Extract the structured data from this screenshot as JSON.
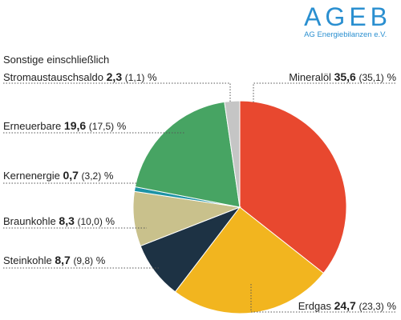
{
  "logo": {
    "title": "AGEB",
    "subtitle": "AG Energiebilanzen e.V."
  },
  "colors": {
    "Mineralöl": "#e8482f",
    "Erdgas": "#f2b51f",
    "Steinkohle": "#1d3244",
    "Braunkohle": "#c9c18c",
    "Kernenergie": "#1e93a5",
    "Erneuerbare": "#47a463",
    "Sonstige": "#c5c5c5",
    "logo": "#2a8fd0"
  },
  "chart_data": {
    "type": "pie",
    "unit": "%",
    "slices": [
      {
        "name": "Mineralöl",
        "value": 35.6,
        "previous": "35,1",
        "label_line1": "",
        "label_name": "Mineralöl",
        "value_text": "35,6",
        "prev_text": "(35,1)"
      },
      {
        "name": "Erdgas",
        "value": 24.7,
        "previous": "23,3",
        "label_line1": "",
        "label_name": "Erdgas",
        "value_text": "24,7",
        "prev_text": "(23,3)"
      },
      {
        "name": "Steinkohle",
        "value": 8.7,
        "previous": "9,8",
        "label_line1": "",
        "label_name": "Steinkohle",
        "value_text": "8,7",
        "prev_text": "(9,8)"
      },
      {
        "name": "Braunkohle",
        "value": 8.3,
        "previous": "10,0",
        "label_line1": "",
        "label_name": "Braunkohle",
        "value_text": "8,3",
        "prev_text": "(10,0)"
      },
      {
        "name": "Kernenergie",
        "value": 0.7,
        "previous": "3,2",
        "label_line1": "",
        "label_name": "Kernenergie",
        "value_text": "0,7",
        "prev_text": "(3,2)"
      },
      {
        "name": "Erneuerbare",
        "value": 19.6,
        "previous": "17,5",
        "label_line1": "",
        "label_name": "Erneuerbare",
        "value_text": "19,6",
        "prev_text": "(17,5)"
      },
      {
        "name": "Sonstige einschließlich Stromaustauschsaldo",
        "value": 2.3,
        "previous": "1,1",
        "label_line1": "Sonstige einschließlich",
        "label_name": "Stromaustauschsaldo",
        "value_text": "2,3",
        "prev_text": "(1,1)"
      }
    ]
  }
}
